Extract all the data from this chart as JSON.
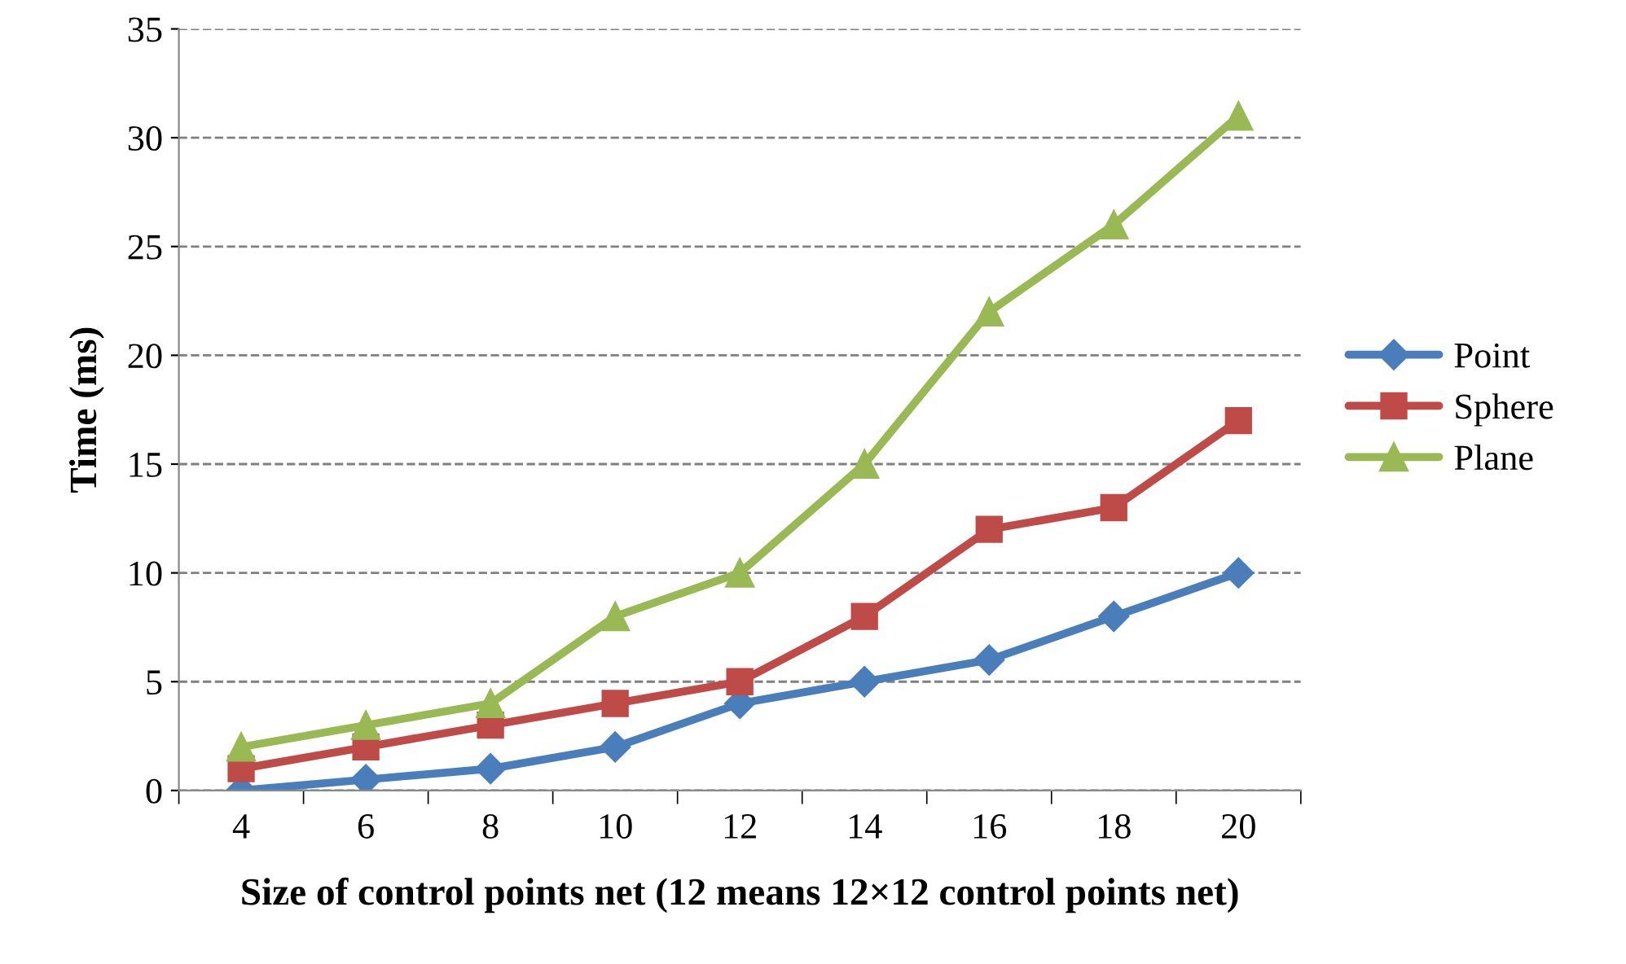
{
  "chart_data": {
    "type": "line",
    "xlabel": "Size of control points net (12 means 12×12 control points net)",
    "ylabel": "Time (ms)",
    "categories": [
      "4",
      "6",
      "8",
      "10",
      "12",
      "14",
      "16",
      "18",
      "20"
    ],
    "series": [
      {
        "name": "Point",
        "color": "#4a7ebb",
        "marker": "diamond",
        "values": [
          0,
          0.5,
          1,
          2,
          4,
          5,
          6,
          8,
          10
        ]
      },
      {
        "name": "Sphere",
        "color": "#be4b48",
        "marker": "square",
        "values": [
          1,
          2,
          3,
          4,
          5,
          8,
          12,
          13,
          17
        ]
      },
      {
        "name": "Plane",
        "color": "#98b954",
        "marker": "triangle",
        "values": [
          2,
          3,
          4,
          8,
          10,
          15,
          22,
          26,
          31
        ]
      }
    ],
    "ylim": [
      0,
      35
    ],
    "yticks": [
      0,
      5,
      10,
      15,
      20,
      25,
      30,
      35
    ],
    "grid": "y",
    "legend": "right",
    "line_style": "solid"
  }
}
